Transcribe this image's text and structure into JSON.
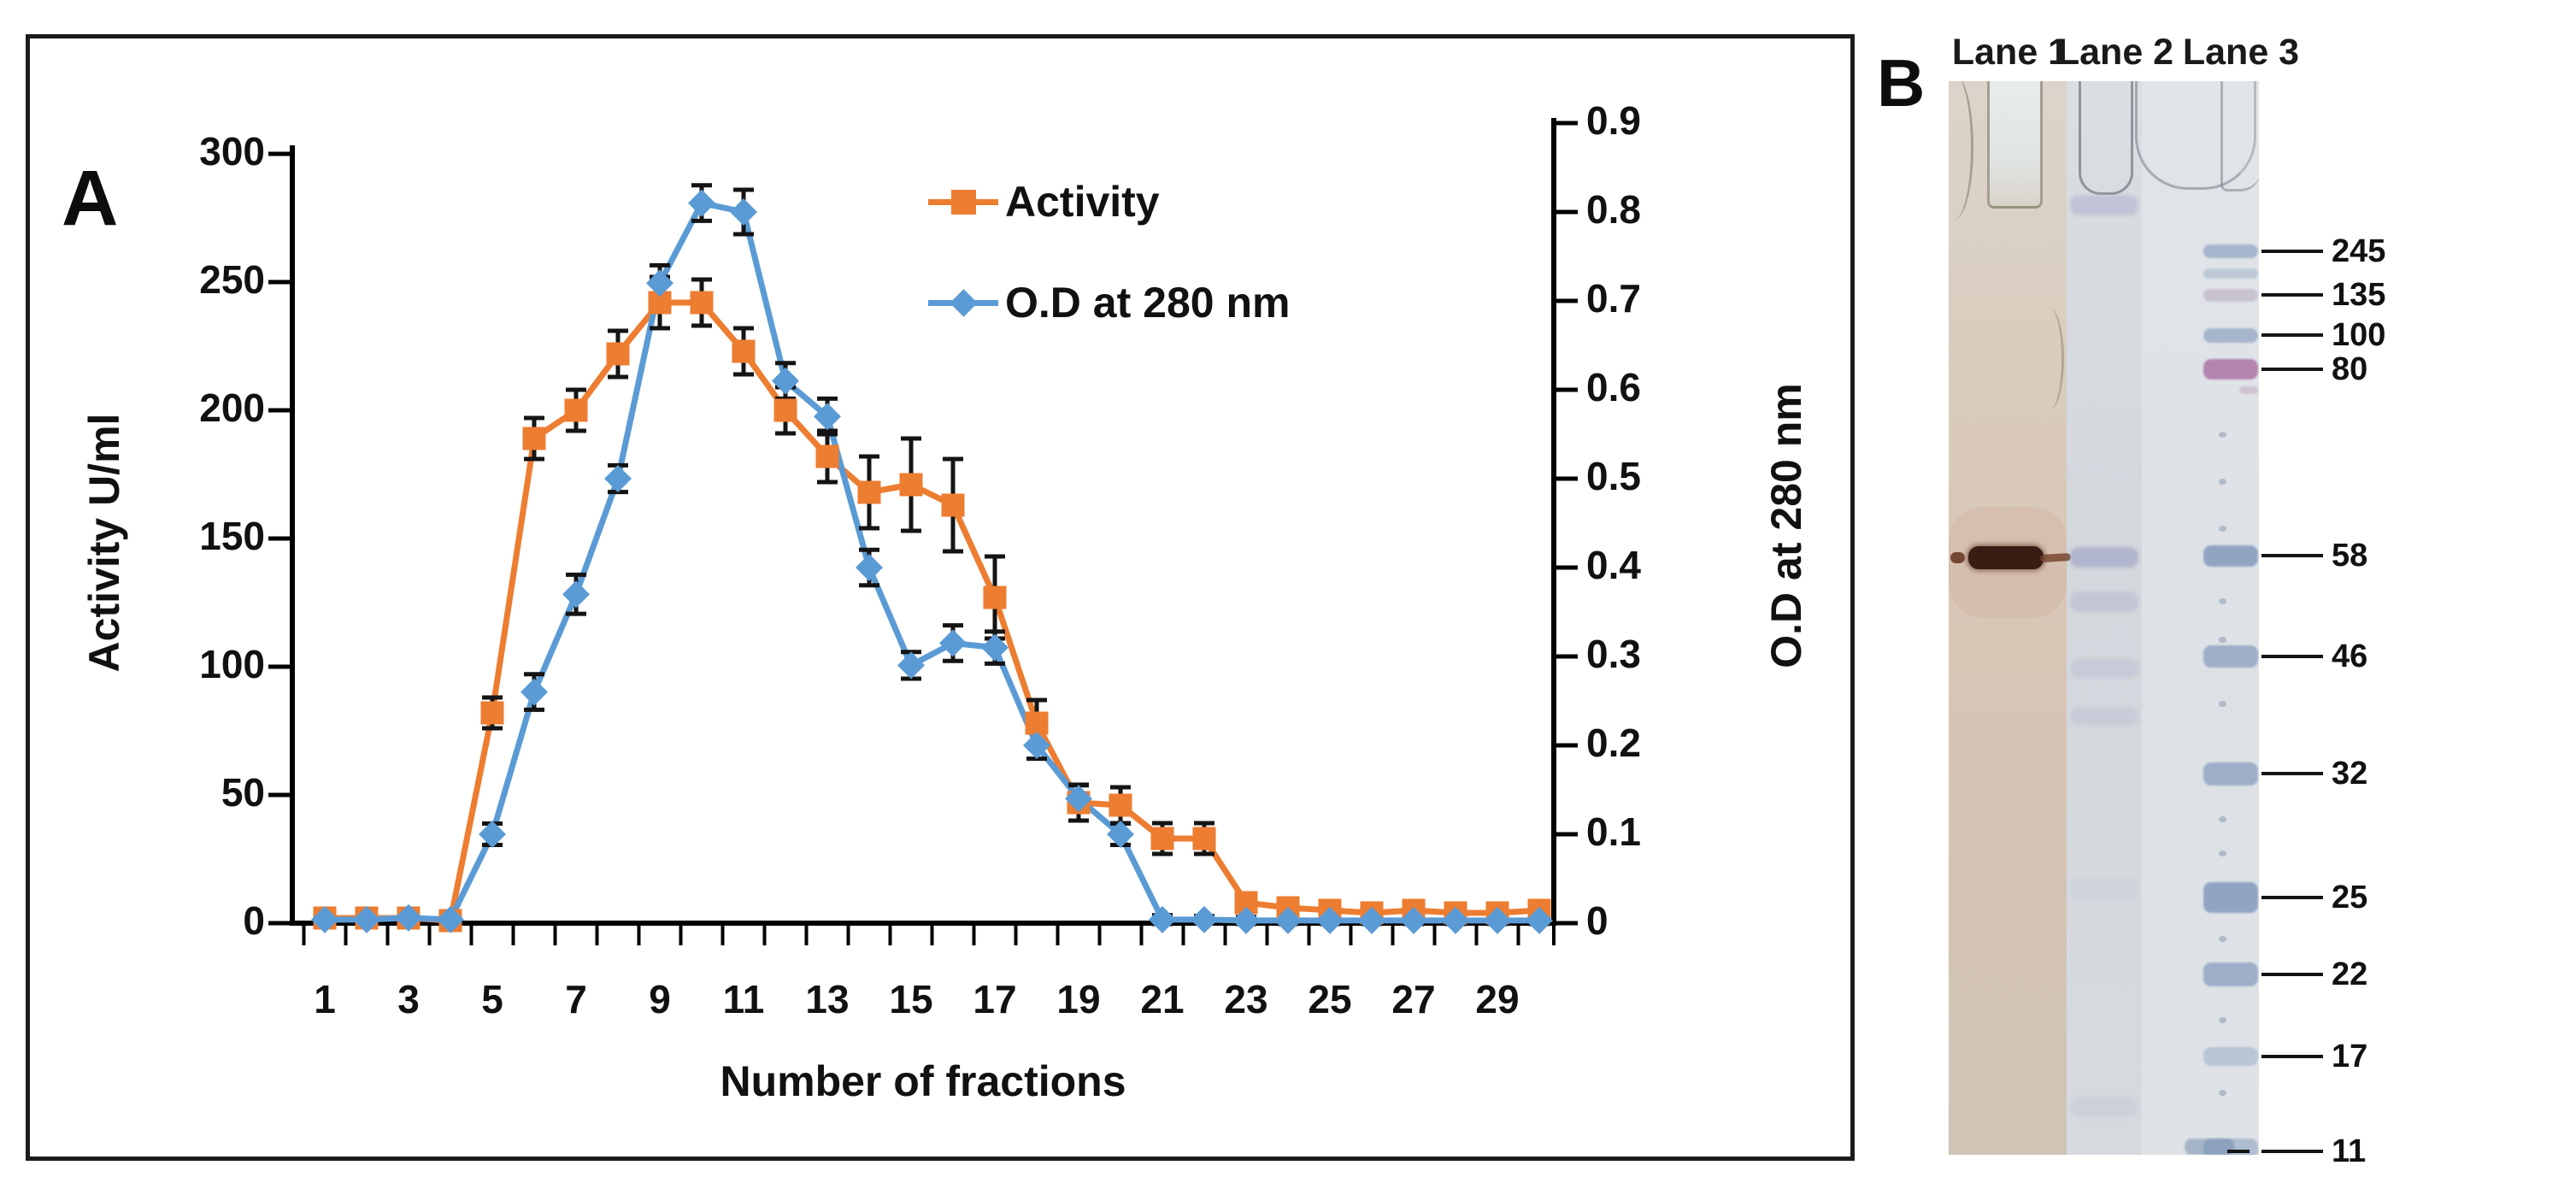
{
  "figure": {
    "panel_a_label": "A",
    "panel_b_label": "B"
  },
  "chart_data": {
    "type": "line",
    "title": "",
    "xlabel": "Number of fractions",
    "ylabel_left": "Activity U/ml",
    "ylabel_right": "O.D at 280 nm",
    "x": [
      1,
      2,
      3,
      4,
      5,
      6,
      7,
      8,
      9,
      10,
      11,
      12,
      13,
      14,
      15,
      16,
      17,
      18,
      19,
      20,
      21,
      22,
      23,
      24,
      25,
      26,
      27,
      28,
      29,
      30
    ],
    "x_tick_labels": [
      1,
      3,
      5,
      7,
      9,
      11,
      13,
      15,
      17,
      19,
      21,
      23,
      25,
      27,
      29
    ],
    "ylim_left": [
      0,
      300
    ],
    "yticks_left": [
      0,
      50,
      100,
      150,
      200,
      250,
      300
    ],
    "ylim_right": [
      0,
      0.9
    ],
    "yticks_right": [
      0,
      0.1,
      0.2,
      0.3,
      0.4,
      0.5,
      0.6,
      0.7,
      0.8,
      0.9
    ],
    "grid": false,
    "legend_position": "top-right-inside",
    "series": [
      {
        "name": "Activity",
        "axis": "left",
        "color": "#ED7D31",
        "marker": "square",
        "values": [
          2,
          2,
          2,
          1,
          82,
          189,
          200,
          222,
          242,
          242,
          223,
          200,
          182,
          168,
          171,
          163,
          127,
          78,
          47,
          46,
          33,
          33,
          8,
          6,
          5,
          4,
          5,
          4,
          4,
          5
        ],
        "errors": [
          3,
          3,
          3,
          2,
          6,
          8,
          8,
          9,
          10,
          9,
          9,
          9,
          10,
          14,
          18,
          18,
          16,
          9,
          7,
          7,
          6,
          6,
          3,
          2,
          2,
          2,
          2,
          2,
          2,
          2
        ]
      },
      {
        "name": "O.D at 280 nm",
        "axis": "right",
        "color": "#5B9BD5",
        "marker": "diamond",
        "values": [
          0.004,
          0.004,
          0.006,
          0.004,
          0.1,
          0.26,
          0.37,
          0.5,
          0.72,
          0.81,
          0.8,
          0.61,
          0.57,
          0.4,
          0.29,
          0.315,
          0.31,
          0.2,
          0.14,
          0.1,
          0.004,
          0.004,
          0.003,
          0.003,
          0.003,
          0.003,
          0.003,
          0.003,
          0.003,
          0.003
        ],
        "errors": [
          0.004,
          0.004,
          0.004,
          0.004,
          0.012,
          0.02,
          0.022,
          0.015,
          0.02,
          0.02,
          0.025,
          0.02,
          0.02,
          0.02,
          0.015,
          0.02,
          0.018,
          0.015,
          0.015,
          0.012,
          0.005,
          0.004,
          0.004,
          0.004,
          0.004,
          0.004,
          0.004,
          0.004,
          0.004,
          0.004
        ]
      }
    ]
  },
  "gel": {
    "lane_labels": [
      "Lane 1",
      "Lane 2",
      "Lane 3"
    ],
    "mw_markers": [
      {
        "label": "245",
        "y": 294
      },
      {
        "label": "135",
        "y": 345
      },
      {
        "label": "100",
        "y": 392
      },
      {
        "label": "80",
        "y": 432
      },
      {
        "label": "58",
        "y": 650
      },
      {
        "label": "46",
        "y": 768
      },
      {
        "label": "32",
        "y": 905
      },
      {
        "label": "25",
        "y": 1050
      },
      {
        "label": "22",
        "y": 1140
      },
      {
        "label": "17",
        "y": 1236
      },
      {
        "label": "11",
        "y": 1347
      }
    ],
    "lane1_band": {
      "y": 653,
      "approx_kda": 58,
      "intensity": "strong dark band"
    },
    "lane2_bands": [
      {
        "y": 240,
        "i": 0.5
      },
      {
        "y": 652,
        "i": 0.8
      },
      {
        "y": 704,
        "i": 0.4
      },
      {
        "y": 782,
        "i": 0.3
      },
      {
        "y": 838,
        "i": 0.25
      },
      {
        "y": 1040,
        "i": 0.15
      },
      {
        "y": 1295,
        "i": 0.2
      }
    ],
    "ladder_bands": [
      {
        "y": 294,
        "h": 16,
        "i": 0.7
      },
      {
        "y": 320,
        "h": 12,
        "i": 0.4
      },
      {
        "y": 345,
        "h": 15,
        "i": 0.55,
        "c": "#b09fb8"
      },
      {
        "y": 392,
        "h": 17,
        "i": 0.7
      },
      {
        "y": 432,
        "h": 24,
        "i": 0.9,
        "c": "#a8679e"
      },
      {
        "y": 456,
        "h": 9,
        "i": 0.4,
        "c": "#b08aa8",
        "w": 22
      },
      {
        "y": 650,
        "h": 25,
        "i": 0.95
      },
      {
        "y": 768,
        "h": 26,
        "i": 0.8
      },
      {
        "y": 905,
        "h": 27,
        "i": 0.8
      },
      {
        "y": 1050,
        "h": 36,
        "i": 0.95
      },
      {
        "y": 1140,
        "h": 28,
        "i": 0.8
      },
      {
        "y": 1236,
        "h": 22,
        "i": 0.45
      },
      {
        "y": 1344,
        "h": 24,
        "i": 0.6
      }
    ],
    "ladder_speckles_y": [
      505,
      560,
      615,
      700,
      745,
      820,
      955,
      995,
      1095,
      1190,
      1275
    ]
  }
}
